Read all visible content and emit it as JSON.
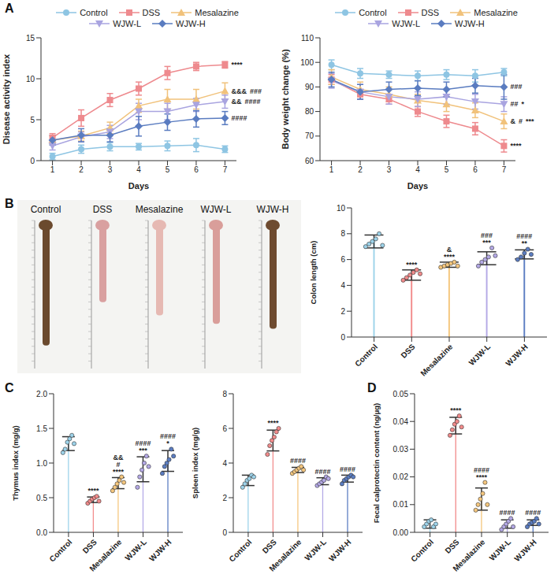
{
  "chart_data": [
    {
      "panel": "A",
      "type": "line",
      "x_label": "Days",
      "y_label": "Disease activity index",
      "x": [
        1,
        2,
        3,
        4,
        5,
        6,
        7
      ],
      "xlim": [
        0.6,
        7.4
      ],
      "xticks": [
        1,
        2,
        3,
        4,
        5,
        6,
        7
      ],
      "ylim": [
        0,
        15
      ],
      "yticks": [
        0,
        5,
        10,
        15
      ],
      "legend": "top",
      "series": [
        {
          "name": "Control",
          "color": "#8ec5e3",
          "marker": "circle",
          "values": [
            0.5,
            1.4,
            1.7,
            1.7,
            1.8,
            1.9,
            1.4
          ],
          "errors": [
            0.4,
            0.5,
            0.5,
            0.4,
            0.6,
            0.8,
            0.4
          ]
        },
        {
          "name": "DSS",
          "color": "#ee8a8e",
          "marker": "square",
          "values": [
            2.8,
            5.2,
            7.4,
            8.8,
            10.7,
            11.5,
            11.7
          ],
          "errors": [
            0.5,
            1.0,
            0.8,
            0.8,
            0.8,
            0.5,
            0.4
          ],
          "annotations": [
            "****"
          ]
        },
        {
          "name": "Mesalazine",
          "color": "#f1c27b",
          "marker": "triangle",
          "values": [
            2.5,
            3.0,
            4.0,
            6.7,
            7.5,
            7.5,
            8.5
          ],
          "errors": [
            0.5,
            0.6,
            0.7,
            0.8,
            1.2,
            1.2,
            1.0
          ],
          "annotations": [
            "&&&",
            "###"
          ]
        },
        {
          "name": "WJW-L",
          "color": "#a9a4e0",
          "marker": "triangle-down",
          "values": [
            1.8,
            2.9,
            3.5,
            6.0,
            6.0,
            6.8,
            7.2
          ],
          "errors": [
            0.5,
            0.6,
            0.8,
            1.0,
            1.0,
            0.8,
            0.8
          ],
          "annotations": [
            "&&",
            "####"
          ]
        },
        {
          "name": "WJW-H",
          "color": "#5a7cc0",
          "marker": "diamond",
          "values": [
            2.5,
            3.1,
            3.1,
            4.2,
            4.7,
            5.1,
            5.2
          ],
          "errors": [
            0.6,
            0.8,
            0.8,
            1.2,
            1.0,
            1.0,
            0.8
          ],
          "annotations": [
            "####"
          ]
        }
      ]
    },
    {
      "panel": "",
      "type": "line",
      "x_label": "Days",
      "y_label": "Body weight change (%)",
      "x": [
        1,
        2,
        3,
        4,
        5,
        6,
        7
      ],
      "xlim": [
        0.6,
        7.4
      ],
      "xticks": [
        1,
        2,
        3,
        4,
        5,
        6,
        7
      ],
      "ylim": [
        60,
        110
      ],
      "yticks": [
        60,
        70,
        80,
        90,
        100,
        110
      ],
      "legend": "top",
      "series": [
        {
          "name": "Control",
          "color": "#8ec5e3",
          "marker": "circle",
          "values": [
            99,
            95.5,
            95,
            94.5,
            95,
            94.5,
            96
          ],
          "errors": [
            2,
            2,
            1.5,
            2,
            2,
            2.5,
            1.5
          ]
        },
        {
          "name": "DSS",
          "color": "#ee8a8e",
          "marker": "square",
          "values": [
            93,
            87,
            85,
            80,
            76,
            73,
            66
          ],
          "errors": [
            2,
            2,
            2,
            2,
            2.5,
            2.5,
            2.5
          ],
          "annotations": [
            "****"
          ]
        },
        {
          "name": "Mesalazine",
          "color": "#f1c27b",
          "marker": "triangle",
          "values": [
            94,
            89,
            87,
            84.5,
            83,
            80.5,
            76
          ],
          "errors": [
            3,
            3,
            3,
            2.5,
            3,
            3,
            3
          ],
          "annotations": [
            "&",
            "#",
            "***"
          ]
        },
        {
          "name": "WJW-L",
          "color": "#a9a4e0",
          "marker": "triangle-down",
          "values": [
            92.5,
            88,
            86,
            85,
            86,
            84,
            83
          ],
          "errors": [
            3,
            3,
            3,
            3,
            3,
            3,
            3
          ],
          "annotations": [
            "##",
            "*"
          ]
        },
        {
          "name": "WJW-H",
          "color": "#5a7cc0",
          "marker": "diamond",
          "values": [
            93,
            88,
            89,
            89.5,
            89,
            90.5,
            90
          ],
          "errors": [
            3,
            3,
            3,
            3,
            3,
            3,
            5
          ],
          "annotations": [
            "###"
          ]
        }
      ]
    },
    {
      "panel": "B",
      "type": "image",
      "labels": [
        "Control",
        "DSS",
        "Mesalazine",
        "WJW-L",
        "WJW-H"
      ]
    },
    {
      "panel": "",
      "type": "bar",
      "y_label": "Colon length (cm)",
      "categories": [
        "Control",
        "DSS",
        "Mesalazine",
        "WJW-L",
        "WJW-H"
      ],
      "colors": [
        "#9dd3ea",
        "#f28b8b",
        "#f5c77e",
        "#b4a9e6",
        "#5b7dc2"
      ],
      "values": [
        7.4,
        4.8,
        5.6,
        6.1,
        6.4
      ],
      "errors": [
        0.5,
        0.4,
        0.2,
        0.5,
        0.35
      ],
      "points": [
        [
          7.0,
          7.2,
          7.4,
          7.6,
          8.0,
          7.1
        ],
        [
          4.4,
          4.6,
          4.8,
          5.0,
          5.2,
          4.9
        ],
        [
          5.4,
          5.5,
          5.6,
          5.7,
          5.8,
          5.5
        ],
        [
          5.5,
          5.8,
          6.0,
          6.2,
          6.9,
          6.3
        ],
        [
          6.0,
          6.2,
          6.5,
          6.8,
          6.4
        ]
      ],
      "annotations": [
        [],
        [
          "****"
        ],
        [
          "&",
          "****"
        ],
        [
          "###",
          "***"
        ],
        [
          "####",
          "**"
        ]
      ],
      "ylim": [
        0,
        10
      ],
      "yticks": [
        0,
        2,
        4,
        6,
        8,
        10
      ]
    },
    {
      "panel": "C",
      "type": "bar",
      "y_label": "Thymus index (mg/g)",
      "categories": [
        "Control",
        "DSS",
        "Mesalazine",
        "WJW-L",
        "WJW-H"
      ],
      "colors": [
        "#9dd3ea",
        "#f28b8b",
        "#f5c77e",
        "#b4a9e6",
        "#5b7dc2"
      ],
      "values": [
        1.28,
        0.47,
        0.71,
        0.91,
        1.03
      ],
      "errors": [
        0.1,
        0.04,
        0.08,
        0.18,
        0.15
      ],
      "points": [
        [
          1.15,
          1.2,
          1.3,
          1.35,
          1.4,
          1.28
        ],
        [
          0.42,
          0.45,
          0.48,
          0.5,
          0.52,
          0.45
        ],
        [
          0.6,
          0.65,
          0.7,
          0.75,
          0.8,
          0.72
        ],
        [
          0.65,
          0.8,
          0.9,
          1.0,
          1.1,
          0.95
        ],
        [
          0.85,
          0.95,
          1.0,
          1.05,
          1.2,
          1.1
        ]
      ],
      "annotations": [
        [],
        [
          "****"
        ],
        [
          "&&",
          "#",
          "****"
        ],
        [
          "####",
          "***"
        ],
        [
          "####",
          "*"
        ]
      ],
      "ylim": [
        0,
        2
      ],
      "yticks": [
        {
          "value": 0,
          "label": "0.0"
        },
        0.5,
        {
          "value": 1,
          "label": "1.0"
        },
        1.5,
        {
          "value": 2,
          "label": "2.0"
        }
      ]
    },
    {
      "panel": "",
      "type": "bar",
      "y_label": "Spleen index (mg/g)",
      "categories": [
        "Control",
        "DSS",
        "Mesalazine",
        "WJW-L",
        "WJW-H"
      ],
      "colors": [
        "#9dd3ea",
        "#f28b8b",
        "#f5c77e",
        "#b4a9e6",
        "#5b7dc2"
      ],
      "values": [
        3.0,
        5.3,
        3.6,
        2.95,
        3.1
      ],
      "errors": [
        0.3,
        0.6,
        0.15,
        0.2,
        0.2
      ],
      "points": [
        [
          2.6,
          2.8,
          3.0,
          3.1,
          3.3,
          3.2
        ],
        [
          4.5,
          5.0,
          5.3,
          5.5,
          5.8,
          6.0
        ],
        [
          3.4,
          3.5,
          3.6,
          3.7,
          3.8,
          3.6
        ],
        [
          2.7,
          2.8,
          2.9,
          3.0,
          3.2,
          3.1
        ],
        [
          2.8,
          3.0,
          3.1,
          3.2,
          3.3,
          3.2
        ]
      ],
      "annotations": [
        [],
        [
          "****"
        ],
        [
          "####"
        ],
        [
          "####"
        ],
        [
          "####"
        ]
      ],
      "ylim": [
        0,
        8
      ],
      "yticks": [
        0,
        2,
        4,
        6,
        8
      ]
    },
    {
      "panel": "D",
      "type": "bar",
      "y_label": "Fecal calprotectin content (ng/μg)",
      "categories": [
        "Control",
        "DSS",
        "Mesalazine",
        "WJW-L",
        "WJW-H"
      ],
      "colors": [
        "#9dd3ea",
        "#f28b8b",
        "#f5c77e",
        "#b4a9e6",
        "#5b7dc2"
      ],
      "values": [
        0.003,
        0.0385,
        0.012,
        0.003,
        0.0035
      ],
      "errors": [
        0.0015,
        0.003,
        0.004,
        0.0015,
        0.001
      ],
      "points": [
        [
          0.002,
          0.003,
          0.004,
          0.0045,
          0.002,
          0.003
        ],
        [
          0.035,
          0.037,
          0.039,
          0.04,
          0.042,
          0.038
        ],
        [
          0.008,
          0.01,
          0.012,
          0.014,
          0.018,
          0.01
        ],
        [
          0.001,
          0.002,
          0.003,
          0.004,
          0.005,
          0.002
        ],
        [
          0.002,
          0.003,
          0.0035,
          0.004,
          0.005,
          0.003
        ]
      ],
      "annotations": [
        [],
        [
          "****"
        ],
        [
          "####",
          "****"
        ],
        [
          "####"
        ],
        [
          "####"
        ]
      ],
      "ylim": [
        0,
        0.05
      ],
      "yticks": [
        {
          "value": 0,
          "label": "0.00"
        },
        0.01,
        0.02,
        0.03,
        0.04,
        0.05
      ]
    }
  ]
}
